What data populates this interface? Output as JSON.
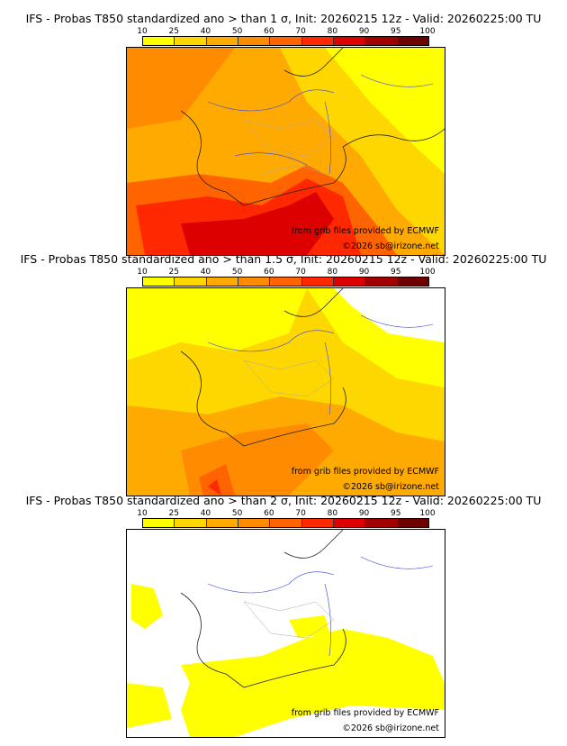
{
  "colorbar": {
    "ticks": [
      "10",
      "25",
      "40",
      "50",
      "60",
      "70",
      "80",
      "90",
      "95",
      "100"
    ],
    "colors": [
      "#ffff00",
      "#ffd700",
      "#ffaa00",
      "#ff8c00",
      "#ff6400",
      "#ff2800",
      "#dc0000",
      "#a00000",
      "#6e0000"
    ]
  },
  "panels": [
    {
      "title": "IFS - Probas T850  standardized ano > than 1 σ, Init: 20260215 12z - Valid: 20260225:00 TU"
    },
    {
      "title": "IFS - Probas T850  standardized ano > than 1.5 σ, Init: 20260215 12z - Valid: 20260225:00 TU"
    },
    {
      "title": "IFS - Probas T850  standardized ano > than 2 σ, Init: 20260215 12z - Valid: 20260225:00 TU"
    }
  ],
  "credits": {
    "source": "from grib files provided by ECMWF",
    "copyright": "©2026 sb@irizone.net"
  }
}
